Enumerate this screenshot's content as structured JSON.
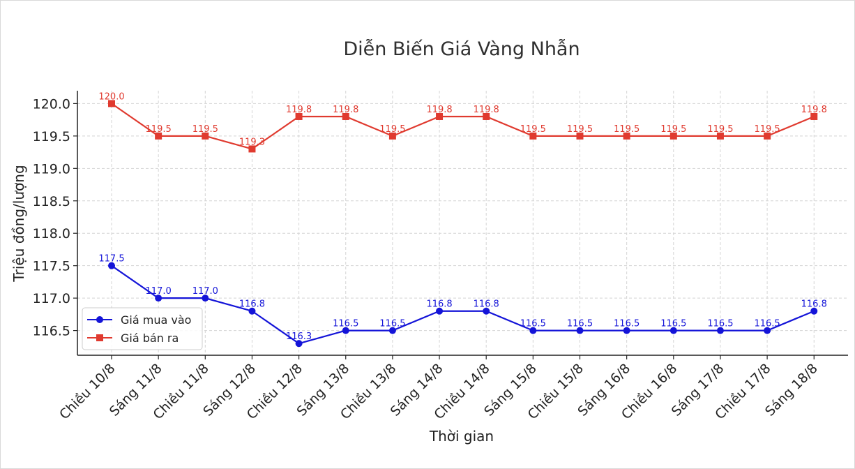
{
  "chart_data": {
    "type": "line",
    "title": "Diễn Biến Giá Vàng Nhẫn",
    "xlabel": "Thời gian",
    "ylabel": "Triệu đồng/lượng",
    "categories": [
      "Chiều 10/8",
      "Sáng 11/8",
      "Chiều 11/8",
      "Sáng 12/8",
      "Chiều 12/8",
      "Sáng 13/8",
      "Chiều 13/8",
      "Sáng 14/8",
      "Chiều 14/8",
      "Sáng 15/8",
      "Chiều 15/8",
      "Sáng 16/8",
      "Chiều 16/8",
      "Sáng 17/8",
      "Chiều 17/8",
      "Sáng 18/8"
    ],
    "yticks": [
      "116.5",
      "117.0",
      "117.5",
      "118.0",
      "118.5",
      "119.0",
      "119.5",
      "120.0"
    ],
    "ylim": [
      116.1,
      120.2
    ],
    "grid": true,
    "legend_position": "lower-left",
    "series": [
      {
        "name": "Giá mua vào",
        "color": "#1414d8",
        "marker": "circle",
        "values": [
          117.5,
          117.0,
          117.0,
          116.8,
          116.3,
          116.5,
          116.5,
          116.8,
          116.8,
          116.5,
          116.5,
          116.5,
          116.5,
          116.5,
          116.5,
          116.8
        ],
        "labels": [
          "117.5",
          "117.0",
          "117.0",
          "116.8",
          "116.3",
          "116.5",
          "116.5",
          "116.8",
          "116.8",
          "116.5",
          "116.5",
          "116.5",
          "116.5",
          "116.5",
          "116.5",
          "116.8"
        ]
      },
      {
        "name": "Giá bán ra",
        "color": "#e03a2f",
        "marker": "square",
        "values": [
          120.0,
          119.5,
          119.5,
          119.3,
          119.8,
          119.8,
          119.5,
          119.8,
          119.8,
          119.5,
          119.5,
          119.5,
          119.5,
          119.5,
          119.5,
          119.8
        ],
        "labels": [
          "120.0",
          "119.5",
          "119.5",
          "119.3",
          "119.8",
          "119.8",
          "119.5",
          "119.8",
          "119.8",
          "119.5",
          "119.5",
          "119.5",
          "119.5",
          "119.5",
          "119.5",
          "119.8"
        ]
      }
    ]
  }
}
